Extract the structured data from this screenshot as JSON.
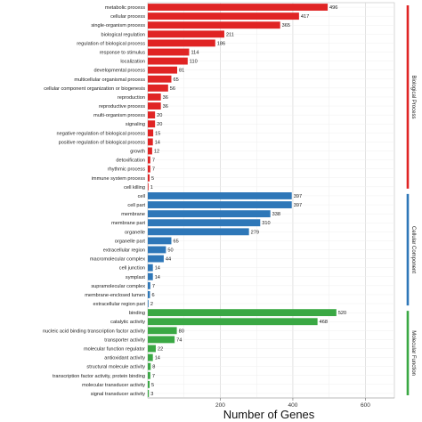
{
  "chart_data": {
    "type": "bar",
    "orientation": "horizontal",
    "xlabel": "Number of Genes",
    "xlim": [
      0,
      680
    ],
    "xticks": [
      200,
      400,
      600
    ],
    "grid": true,
    "legend": "right side bracket",
    "groups": [
      {
        "name": "Biological Process",
        "color": "#e02424",
        "categories": [
          "metabolic process",
          "cellular process",
          "single-organism process",
          "biological regulation",
          "regulation of biological process",
          "response to stimulus",
          "localization",
          "developmental process",
          "multicellular organismal process",
          "cellular component organization or biogenesis",
          "reproduction",
          "reproductive process",
          "multi-organism process",
          "signaling",
          "negative regulation of biological process",
          "positive regulation of biological process",
          "growth",
          "detoxification",
          "rhythmic process",
          "immune system process",
          "cell killing"
        ],
        "values": [
          496,
          417,
          365,
          211,
          186,
          114,
          110,
          81,
          65,
          56,
          36,
          36,
          20,
          20,
          15,
          14,
          12,
          7,
          7,
          5,
          1
        ]
      },
      {
        "name": "Cellular Component",
        "color": "#2e77b8",
        "categories": [
          "cell",
          "cell part",
          "membrane",
          "membrane part",
          "organelle",
          "organelle part",
          "extracellular region",
          "macromolecular complex",
          "cell junction",
          "symplast",
          "supramolecular complex",
          "membrane-enclosed lumen",
          "extracellular region part"
        ],
        "values": [
          397,
          397,
          338,
          310,
          279,
          65,
          50,
          44,
          14,
          14,
          7,
          6,
          2
        ]
      },
      {
        "name": "Molecular Function",
        "color": "#3aa844",
        "categories": [
          "binding",
          "catalytic activity",
          "nucleic acid binding transcription factor activity",
          "transporter activity",
          "molecular function regulator",
          "antioxidant activity",
          "structural molecule activity",
          "transcription factor activity, protein binding",
          "molecular transducer activity",
          "signal transducer activity"
        ],
        "values": [
          520,
          468,
          80,
          74,
          22,
          14,
          8,
          7,
          5,
          3
        ]
      }
    ]
  }
}
